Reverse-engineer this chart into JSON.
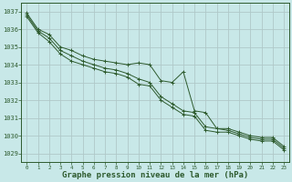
{
  "background_color": "#c8e8e8",
  "grid_color": "#b0c8c8",
  "line_color": "#2d5a2d",
  "xlabel": "Graphe pression niveau de la mer (hPa)",
  "xlabel_fontsize": 6.5,
  "xlim": [
    -0.5,
    23.5
  ],
  "ylim": [
    1028.5,
    1037.5
  ],
  "yticks": [
    1029,
    1030,
    1031,
    1032,
    1033,
    1034,
    1035,
    1036,
    1037
  ],
  "xticks": [
    0,
    1,
    2,
    3,
    4,
    5,
    6,
    7,
    8,
    9,
    10,
    11,
    12,
    13,
    14,
    15,
    16,
    17,
    18,
    19,
    20,
    21,
    22,
    23
  ],
  "series": [
    [
      1036.9,
      1036.0,
      1035.7,
      1035.0,
      1034.8,
      1034.5,
      1034.3,
      1034.2,
      1034.1,
      1034.0,
      1034.1,
      1034.0,
      1033.1,
      1033.0,
      1033.6,
      1031.4,
      1031.3,
      1030.4,
      1030.4,
      1030.2,
      1030.0,
      1029.9,
      1029.9,
      1029.4
    ],
    [
      1036.8,
      1035.9,
      1035.5,
      1034.8,
      1034.5,
      1034.2,
      1034.0,
      1033.8,
      1033.7,
      1033.5,
      1033.2,
      1033.0,
      1032.2,
      1031.8,
      1031.4,
      1031.3,
      1030.5,
      1030.4,
      1030.3,
      1030.1,
      1029.9,
      1029.8,
      1029.8,
      1029.3
    ],
    [
      1036.7,
      1035.8,
      1035.3,
      1034.6,
      1034.2,
      1034.0,
      1033.8,
      1033.6,
      1033.5,
      1033.3,
      1032.9,
      1032.8,
      1032.0,
      1031.6,
      1031.2,
      1031.1,
      1030.3,
      1030.2,
      1030.2,
      1030.0,
      1029.8,
      1029.7,
      1029.7,
      1029.2
    ]
  ]
}
